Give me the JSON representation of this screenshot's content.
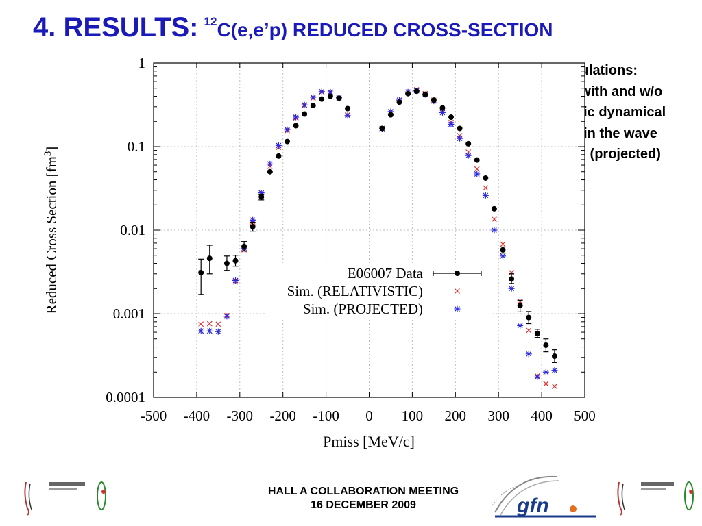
{
  "title": {
    "main": "4. RESULTS:",
    "superscript": "12",
    "rest": "C(e,e’p) REDUCED CROSS-SECTION"
  },
  "simulation_note": {
    "lines": [
      "Simulations:",
      "RDWIA with and w/o",
      "relativistic dynamical",
      "effects in the wave",
      "function (projected)"
    ]
  },
  "footer": {
    "line1": "HALL A COLLABORATION MEETING",
    "line2": "16 DECEMBER 2009"
  },
  "logos": {
    "gfn_text": "gfn"
  },
  "colors": {
    "title": "#1a1ab8",
    "relativistic": "#e03030",
    "projected": "#2a2ae0",
    "data": "#000000",
    "grid": "#bdbdbd"
  },
  "chart_data": {
    "type": "scatter",
    "xlabel": "Pmiss [MeV/c]",
    "ylabel": "Reduced Cross Section [fm3]",
    "xlim": [
      -500,
      500
    ],
    "ylim": [
      0.0001,
      1
    ],
    "yscale": "log",
    "x_ticks": [
      "-500",
      "-400",
      "-300",
      "-200",
      "-100",
      "0",
      "100",
      "200",
      "300",
      "400",
      "500"
    ],
    "y_ticks": [
      "1",
      "0.1",
      "0.01",
      "0.001",
      "0.0001"
    ],
    "grid": true,
    "legend_position": "bottom-right",
    "series": [
      {
        "name": "E06007 Data",
        "marker": "filled-circle-errorbar",
        "points": [
          {
            "x": -390,
            "y": 0.0031,
            "lo": 0.0017,
            "hi": 0.0045
          },
          {
            "x": -370,
            "y": 0.0046,
            "lo": 0.003,
            "hi": 0.0066
          },
          {
            "x": -330,
            "y": 0.004,
            "lo": 0.0033,
            "hi": 0.0049
          },
          {
            "x": -310,
            "y": 0.0043,
            "lo": 0.0037,
            "hi": 0.005
          },
          {
            "x": -290,
            "y": 0.0064,
            "lo": 0.0056,
            "hi": 0.0073
          },
          {
            "x": -270,
            "y": 0.011,
            "lo": 0.0097,
            "hi": 0.0124
          },
          {
            "x": -250,
            "y": 0.025,
            "lo": 0.023,
            "hi": 0.027
          },
          {
            "x": -230,
            "y": 0.05
          },
          {
            "x": -210,
            "y": 0.077
          },
          {
            "x": -190,
            "y": 0.115
          },
          {
            "x": -170,
            "y": 0.178
          },
          {
            "x": -150,
            "y": 0.245
          },
          {
            "x": -130,
            "y": 0.31
          },
          {
            "x": -110,
            "y": 0.37
          },
          {
            "x": -90,
            "y": 0.4
          },
          {
            "x": -70,
            "y": 0.38
          },
          {
            "x": -50,
            "y": 0.285
          },
          {
            "x": 30,
            "y": 0.165
          },
          {
            "x": 50,
            "y": 0.24
          },
          {
            "x": 70,
            "y": 0.34
          },
          {
            "x": 90,
            "y": 0.43
          },
          {
            "x": 110,
            "y": 0.46
          },
          {
            "x": 130,
            "y": 0.42
          },
          {
            "x": 150,
            "y": 0.36
          },
          {
            "x": 170,
            "y": 0.29
          },
          {
            "x": 190,
            "y": 0.225
          },
          {
            "x": 210,
            "y": 0.165
          },
          {
            "x": 230,
            "y": 0.108
          },
          {
            "x": 250,
            "y": 0.069
          },
          {
            "x": 270,
            "y": 0.042
          },
          {
            "x": 290,
            "y": 0.018
          },
          {
            "x": 310,
            "y": 0.0058,
            "lo": 0.0053,
            "hi": 0.0063
          },
          {
            "x": 330,
            "y": 0.0026,
            "lo": 0.0023,
            "hi": 0.003
          },
          {
            "x": 350,
            "y": 0.00125,
            "lo": 0.00105,
            "hi": 0.00145
          },
          {
            "x": 370,
            "y": 0.0009,
            "lo": 0.00076,
            "hi": 0.00106
          },
          {
            "x": 390,
            "y": 0.00058,
            "lo": 0.00052,
            "hi": 0.00065
          },
          {
            "x": 410,
            "y": 0.00042,
            "lo": 0.00035,
            "hi": 0.0005
          },
          {
            "x": 430,
            "y": 0.00031,
            "lo": 0.00026,
            "hi": 0.00037
          }
        ]
      },
      {
        "name": "Sim. (RELATIVISTIC)",
        "marker": "x",
        "points": [
          {
            "x": -390,
            "y": 0.00075
          },
          {
            "x": -370,
            "y": 0.00076
          },
          {
            "x": -350,
            "y": 0.00075
          },
          {
            "x": -330,
            "y": 0.00095
          },
          {
            "x": -310,
            "y": 0.0024
          },
          {
            "x": -290,
            "y": 0.0058
          },
          {
            "x": -270,
            "y": 0.0125
          },
          {
            "x": -250,
            "y": 0.027
          },
          {
            "x": -230,
            "y": 0.058
          },
          {
            "x": -210,
            "y": 0.098
          },
          {
            "x": -190,
            "y": 0.155
          },
          {
            "x": -170,
            "y": 0.22
          },
          {
            "x": -150,
            "y": 0.31
          },
          {
            "x": -130,
            "y": 0.38
          },
          {
            "x": -110,
            "y": 0.45
          },
          {
            "x": -90,
            "y": 0.44
          },
          {
            "x": -70,
            "y": 0.38
          },
          {
            "x": -50,
            "y": 0.24
          },
          {
            "x": 30,
            "y": 0.165
          },
          {
            "x": 50,
            "y": 0.26
          },
          {
            "x": 70,
            "y": 0.36
          },
          {
            "x": 90,
            "y": 0.45
          },
          {
            "x": 110,
            "y": 0.48
          },
          {
            "x": 130,
            "y": 0.43
          },
          {
            "x": 150,
            "y": 0.36
          },
          {
            "x": 170,
            "y": 0.27
          },
          {
            "x": 190,
            "y": 0.195
          },
          {
            "x": 210,
            "y": 0.135
          },
          {
            "x": 230,
            "y": 0.086
          },
          {
            "x": 250,
            "y": 0.054
          },
          {
            "x": 270,
            "y": 0.032
          },
          {
            "x": 290,
            "y": 0.0135
          },
          {
            "x": 310,
            "y": 0.0068
          },
          {
            "x": 330,
            "y": 0.0031
          },
          {
            "x": 350,
            "y": 0.0014
          },
          {
            "x": 370,
            "y": 0.00063
          },
          {
            "x": 390,
            "y": 0.00018
          },
          {
            "x": 410,
            "y": 0.000145
          },
          {
            "x": 430,
            "y": 0.000135
          }
        ]
      },
      {
        "name": "Sim. (PROJECTED)",
        "marker": "star",
        "points": [
          {
            "x": -390,
            "y": 0.00062
          },
          {
            "x": -370,
            "y": 0.00062
          },
          {
            "x": -350,
            "y": 0.00061
          },
          {
            "x": -330,
            "y": 0.00093
          },
          {
            "x": -310,
            "y": 0.0025
          },
          {
            "x": -290,
            "y": 0.0061
          },
          {
            "x": -270,
            "y": 0.0132
          },
          {
            "x": -250,
            "y": 0.028
          },
          {
            "x": -230,
            "y": 0.062
          },
          {
            "x": -210,
            "y": 0.103
          },
          {
            "x": -190,
            "y": 0.16
          },
          {
            "x": -170,
            "y": 0.225
          },
          {
            "x": -150,
            "y": 0.315
          },
          {
            "x": -130,
            "y": 0.39
          },
          {
            "x": -110,
            "y": 0.455
          },
          {
            "x": -90,
            "y": 0.45
          },
          {
            "x": -70,
            "y": 0.385
          },
          {
            "x": -50,
            "y": 0.235
          },
          {
            "x": 30,
            "y": 0.163
          },
          {
            "x": 50,
            "y": 0.262
          },
          {
            "x": 70,
            "y": 0.36
          },
          {
            "x": 90,
            "y": 0.45
          },
          {
            "x": 110,
            "y": 0.465
          },
          {
            "x": 130,
            "y": 0.42
          },
          {
            "x": 150,
            "y": 0.35
          },
          {
            "x": 170,
            "y": 0.255
          },
          {
            "x": 190,
            "y": 0.185
          },
          {
            "x": 210,
            "y": 0.125
          },
          {
            "x": 230,
            "y": 0.078
          },
          {
            "x": 250,
            "y": 0.047
          },
          {
            "x": 270,
            "y": 0.026
          },
          {
            "x": 290,
            "y": 0.01
          },
          {
            "x": 310,
            "y": 0.0049
          },
          {
            "x": 330,
            "y": 0.002
          },
          {
            "x": 350,
            "y": 0.00072
          },
          {
            "x": 370,
            "y": 0.00033
          },
          {
            "x": 390,
            "y": 0.000175
          },
          {
            "x": 410,
            "y": 0.0002
          },
          {
            "x": 430,
            "y": 0.00021
          }
        ]
      }
    ]
  }
}
